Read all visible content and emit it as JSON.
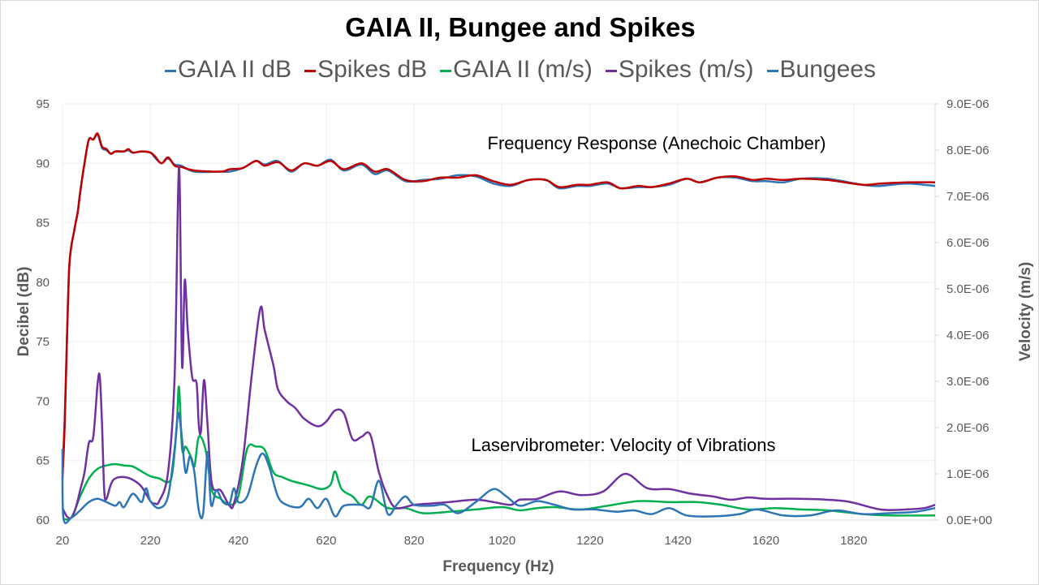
{
  "chart_data": {
    "type": "line",
    "title": "GAIA II, Bungee and Spikes",
    "xlabel": "Frequency (Hz)",
    "ylabel": "Decibel (dB)",
    "y2label": "Velocity (m/s)",
    "xlim": [
      20,
      2005
    ],
    "ylim": [
      60,
      95
    ],
    "y2lim": [
      0,
      9e-06
    ],
    "x_ticks": [
      "20",
      "220",
      "420",
      "620",
      "820",
      "1020",
      "1220",
      "1420",
      "1620",
      "1820"
    ],
    "y_ticks": [
      "60",
      "65",
      "70",
      "75",
      "80",
      "85",
      "90",
      "95"
    ],
    "y2_ticks": [
      "0.0E+00",
      "1.0E-06",
      "2.0E-06",
      "3.0E-06",
      "4.0E-06",
      "5.0E-06",
      "6.0E-06",
      "7.0E-06",
      "8.0E-06",
      "9.0E-06"
    ],
    "grid": true,
    "legend": "top",
    "annotations": [
      "Frequency Response (Anechoic Chamber)",
      "Laservibrometer: Velocity of Vibrations"
    ],
    "series": [
      {
        "name": "GAIA II dB",
        "axis": "left",
        "color": "#2e75b6",
        "x": [
          20,
          25,
          30,
          35,
          40,
          45,
          50,
          55,
          60,
          70,
          80,
          90,
          100,
          110,
          120,
          130,
          140,
          160,
          170,
          180,
          200,
          220,
          230,
          245,
          260,
          275,
          290,
          320,
          380,
          400,
          430,
          460,
          480,
          510,
          540,
          570,
          600,
          630,
          660,
          700,
          730,
          760,
          800,
          840,
          880,
          920,
          960,
          1000,
          1040,
          1080,
          1120,
          1150,
          1190,
          1220,
          1260,
          1290,
          1330,
          1360,
          1400,
          1440,
          1470,
          1510,
          1550,
          1590,
          1620,
          1660,
          1700,
          1760,
          1840,
          1880,
          1940,
          2005
        ],
        "y": [
          64,
          68.5,
          75,
          81,
          83,
          84,
          85,
          86,
          87.5,
          90,
          92,
          92,
          92.4,
          91.3,
          91.1,
          90.8,
          91,
          91,
          91.1,
          90.9,
          91,
          90.9,
          90.5,
          90,
          90.4,
          89.9,
          89.8,
          89.3,
          89.3,
          89.3,
          89.6,
          90.2,
          89.9,
          90.2,
          89.3,
          90,
          89.8,
          90.3,
          89.4,
          89.9,
          89.1,
          89.4,
          88.5,
          88.6,
          88.7,
          89,
          88.9,
          88.3,
          88.1,
          88.6,
          88.6,
          87.9,
          88.1,
          88.1,
          88.3,
          87.9,
          88,
          88,
          88.2,
          88.7,
          88.4,
          88.8,
          88.8,
          88.5,
          88.5,
          88.4,
          88.7,
          88.7,
          88.2,
          88.1,
          88.3,
          88.1
        ]
      },
      {
        "name": "Spikes dB",
        "axis": "left",
        "color": "#c00000",
        "x": [
          20,
          25,
          30,
          35,
          40,
          45,
          50,
          55,
          60,
          70,
          80,
          90,
          100,
          110,
          120,
          130,
          140,
          160,
          170,
          180,
          200,
          220,
          230,
          245,
          260,
          275,
          290,
          320,
          380,
          400,
          430,
          460,
          480,
          510,
          540,
          570,
          600,
          630,
          660,
          700,
          730,
          760,
          800,
          840,
          880,
          920,
          960,
          1000,
          1040,
          1080,
          1120,
          1150,
          1190,
          1220,
          1260,
          1290,
          1330,
          1360,
          1400,
          1440,
          1470,
          1510,
          1550,
          1590,
          1620,
          1660,
          1700,
          1760,
          1840,
          1880,
          1940,
          2005
        ],
        "y": [
          63.5,
          68,
          75,
          81,
          83,
          84,
          85,
          86,
          87.5,
          90,
          92,
          92,
          92.5,
          91.4,
          91.2,
          90.8,
          91,
          91,
          91.2,
          90.9,
          91,
          90.9,
          90.6,
          90,
          90.5,
          89.8,
          89.7,
          89.4,
          89.3,
          89.5,
          89.6,
          90.2,
          89.8,
          90.1,
          89.4,
          90,
          89.8,
          90.2,
          89.5,
          90,
          89.3,
          89.5,
          88.6,
          88.5,
          88.8,
          88.8,
          89,
          88.5,
          88.2,
          88.6,
          88.6,
          88,
          88.2,
          88.2,
          88.4,
          87.9,
          88.1,
          88,
          88.3,
          88.7,
          88.4,
          88.8,
          88.9,
          88.6,
          88.7,
          88.6,
          88.7,
          88.6,
          88.2,
          88.3,
          88.4,
          88.4
        ]
      },
      {
        "name": "GAIA II (m/s)",
        "axis": "right",
        "color": "#00b050",
        "x": [
          20,
          40,
          60,
          80,
          100,
          120,
          140,
          160,
          180,
          200,
          220,
          240,
          260,
          270,
          280,
          285,
          292,
          300,
          310,
          320,
          330,
          345,
          360,
          380,
          400,
          420,
          440,
          460,
          480,
          500,
          520,
          540,
          580,
          610,
          630,
          640,
          655,
          680,
          700,
          720,
          760,
          800,
          840,
          900,
          960,
          1020,
          1060,
          1100,
          1140,
          1200,
          1260,
          1330,
          1400,
          1460,
          1520,
          1580,
          1640,
          1700,
          1760,
          1840,
          1900,
          2005
        ],
        "y": [
          3e-08,
          5e-08,
          5.1e-07,
          9e-07,
          1.11e-06,
          1.18e-06,
          1.21e-06,
          1.18e-06,
          1.16e-06,
          1.05e-06,
          9.5e-07,
          9e-07,
          8.2e-07,
          1.03e-06,
          2.06e-06,
          2.88e-06,
          1.54e-06,
          1.59e-06,
          1.41e-06,
          1.16e-06,
          1.8e-06,
          1.54e-06,
          6.4e-07,
          4.6e-07,
          3.3e-07,
          5.1e-07,
          1.54e-06,
          1.59e-06,
          1.52e-06,
          1.03e-06,
          9.3e-07,
          8.5e-07,
          7.5e-07,
          6.7e-07,
          7.7e-07,
          1.05e-06,
          6.7e-07,
          5.1e-07,
          3.3e-07,
          5.1e-07,
          2.6e-07,
          2.6e-07,
          1.5e-07,
          1.8e-07,
          2.3e-07,
          2.8e-07,
          2.1e-07,
          2.6e-07,
          2.8e-07,
          2.3e-07,
          3.1e-07,
          4.1e-07,
          3.9e-07,
          3.9e-07,
          3.3e-07,
          2.3e-07,
          2.6e-07,
          2.3e-07,
          2.1e-07,
          1.3e-07,
          1e-07,
          1e-07
        ]
      },
      {
        "name": "Spikes (m/s)",
        "axis": "right",
        "color": "#7030a0",
        "x": [
          20,
          30,
          40,
          50,
          60,
          70,
          80,
          90,
          100,
          105,
          110,
          115,
          120,
          130,
          140,
          160,
          180,
          200,
          220,
          230,
          240,
          260,
          275,
          285,
          292,
          298,
          305,
          315,
          325,
          330,
          335,
          342,
          350,
          360,
          380,
          400,
          410,
          430,
          450,
          470,
          480,
          500,
          510,
          530,
          550,
          570,
          600,
          620,
          640,
          660,
          680,
          700,
          720,
          740,
          760,
          780,
          820,
          860,
          900,
          960,
          1000,
          1040,
          1060,
          1100,
          1150,
          1200,
          1250,
          1300,
          1350,
          1400,
          1450,
          1500,
          1540,
          1580,
          1620,
          1700,
          1800,
          1880,
          1940,
          1980,
          2005
        ],
        "y": [
          2.6e-07,
          8e-08,
          5e-08,
          2.6e-07,
          6.4e-07,
          1.03e-06,
          1.67e-06,
          1.8e-06,
          2.96e-06,
          3.09e-06,
          2.06e-06,
          6.4e-07,
          4.6e-07,
          7.7e-07,
          9e-07,
          9.3e-07,
          8.7e-07,
          7.2e-07,
          4.1e-07,
          3.6e-07,
          4.1e-07,
          1.03e-06,
          3.09e-06,
          7.66e-06,
          3.34e-06,
          5.19e-06,
          4.11e-06,
          3.09e-06,
          2.96e-06,
          2.06e-06,
          1.93e-06,
          3.03e-06,
          2.06e-06,
          7.7e-07,
          6.4e-07,
          3.1e-07,
          3.6e-07,
          1.29e-06,
          3.09e-06,
          4.58e-06,
          4.11e-06,
          3.34e-06,
          2.83e-06,
          2.57e-06,
          2.42e-06,
          2.19e-06,
          2.03e-06,
          2.13e-06,
          2.37e-06,
          2.31e-06,
          1.75e-06,
          1.8e-06,
          1.85e-06,
          1.03e-06,
          5.1e-07,
          2.6e-07,
          3.3e-07,
          3.6e-07,
          3.9e-07,
          4.4e-07,
          3.9e-07,
          3.3e-07,
          4.4e-07,
          4.6e-07,
          6.2e-07,
          5.4e-07,
          6.2e-07,
          1e-06,
          6.9e-07,
          6.7e-07,
          5.7e-07,
          5.1e-07,
          4.4e-07,
          4.9e-07,
          4.6e-07,
          4.6e-07,
          4.1e-07,
          2.3e-07,
          2.3e-07,
          2.6e-07,
          3.3e-07
        ]
      },
      {
        "name": "Bungees",
        "axis": "right",
        "color": "#2e75b6",
        "x": [
          20,
          22,
          40,
          60,
          80,
          100,
          120,
          140,
          150,
          160,
          180,
          200,
          210,
          220,
          240,
          260,
          275,
          283,
          290,
          300,
          310,
          320,
          330,
          340,
          350,
          358,
          370,
          385,
          400,
          410,
          420,
          440,
          460,
          475,
          490,
          510,
          530,
          560,
          580,
          600,
          620,
          640,
          660,
          700,
          720,
          740,
          760,
          780,
          800,
          820,
          860,
          890,
          920,
          960,
          1000,
          1030,
          1060,
          1100,
          1140,
          1180,
          1230,
          1280,
          1320,
          1360,
          1400,
          1440,
          1500,
          1560,
          1600,
          1660,
          1720,
          1780,
          1840,
          1900,
          1960,
          2005
        ],
        "y": [
          1.54e-06,
          5e-08,
          5e-08,
          2.1e-07,
          3.9e-07,
          4.6e-07,
          3.9e-07,
          3.1e-07,
          3.9e-07,
          2.8e-07,
          5.7e-07,
          3.9e-07,
          6.9e-07,
          4.1e-07,
          2.6e-07,
          5.1e-07,
          1.54e-06,
          2.31e-06,
          1.93e-06,
          1.03e-06,
          1.39e-06,
          1.03e-06,
          2.1e-07,
          1.5e-07,
          1.47e-06,
          3.3e-07,
          6.4e-07,
          3.9e-07,
          3.6e-07,
          6.9e-07,
          3.9e-07,
          5.1e-07,
          1.16e-06,
          1.44e-06,
          1.16e-06,
          5.1e-07,
          3.3e-07,
          2.8e-07,
          4.6e-07,
          2.6e-07,
          4.6e-07,
          8e-08,
          3.1e-07,
          3.3e-07,
          2.8e-07,
          8.5e-07,
          1.3e-07,
          3.3e-07,
          5.1e-07,
          3.3e-07,
          3.1e-07,
          3.3e-07,
          1.5e-07,
          3.9e-07,
          6.7e-07,
          5.1e-07,
          3.1e-07,
          4.1e-07,
          3.3e-07,
          2.3e-07,
          2.3e-07,
          1.8e-07,
          2.1e-07,
          1.3e-07,
          2.6e-07,
          1e-07,
          8e-08,
          1.3e-07,
          2.3e-07,
          1e-07,
          1e-07,
          2.1e-07,
          1.3e-07,
          1.5e-07,
          1.8e-07,
          2.6e-07
        ]
      }
    ]
  }
}
